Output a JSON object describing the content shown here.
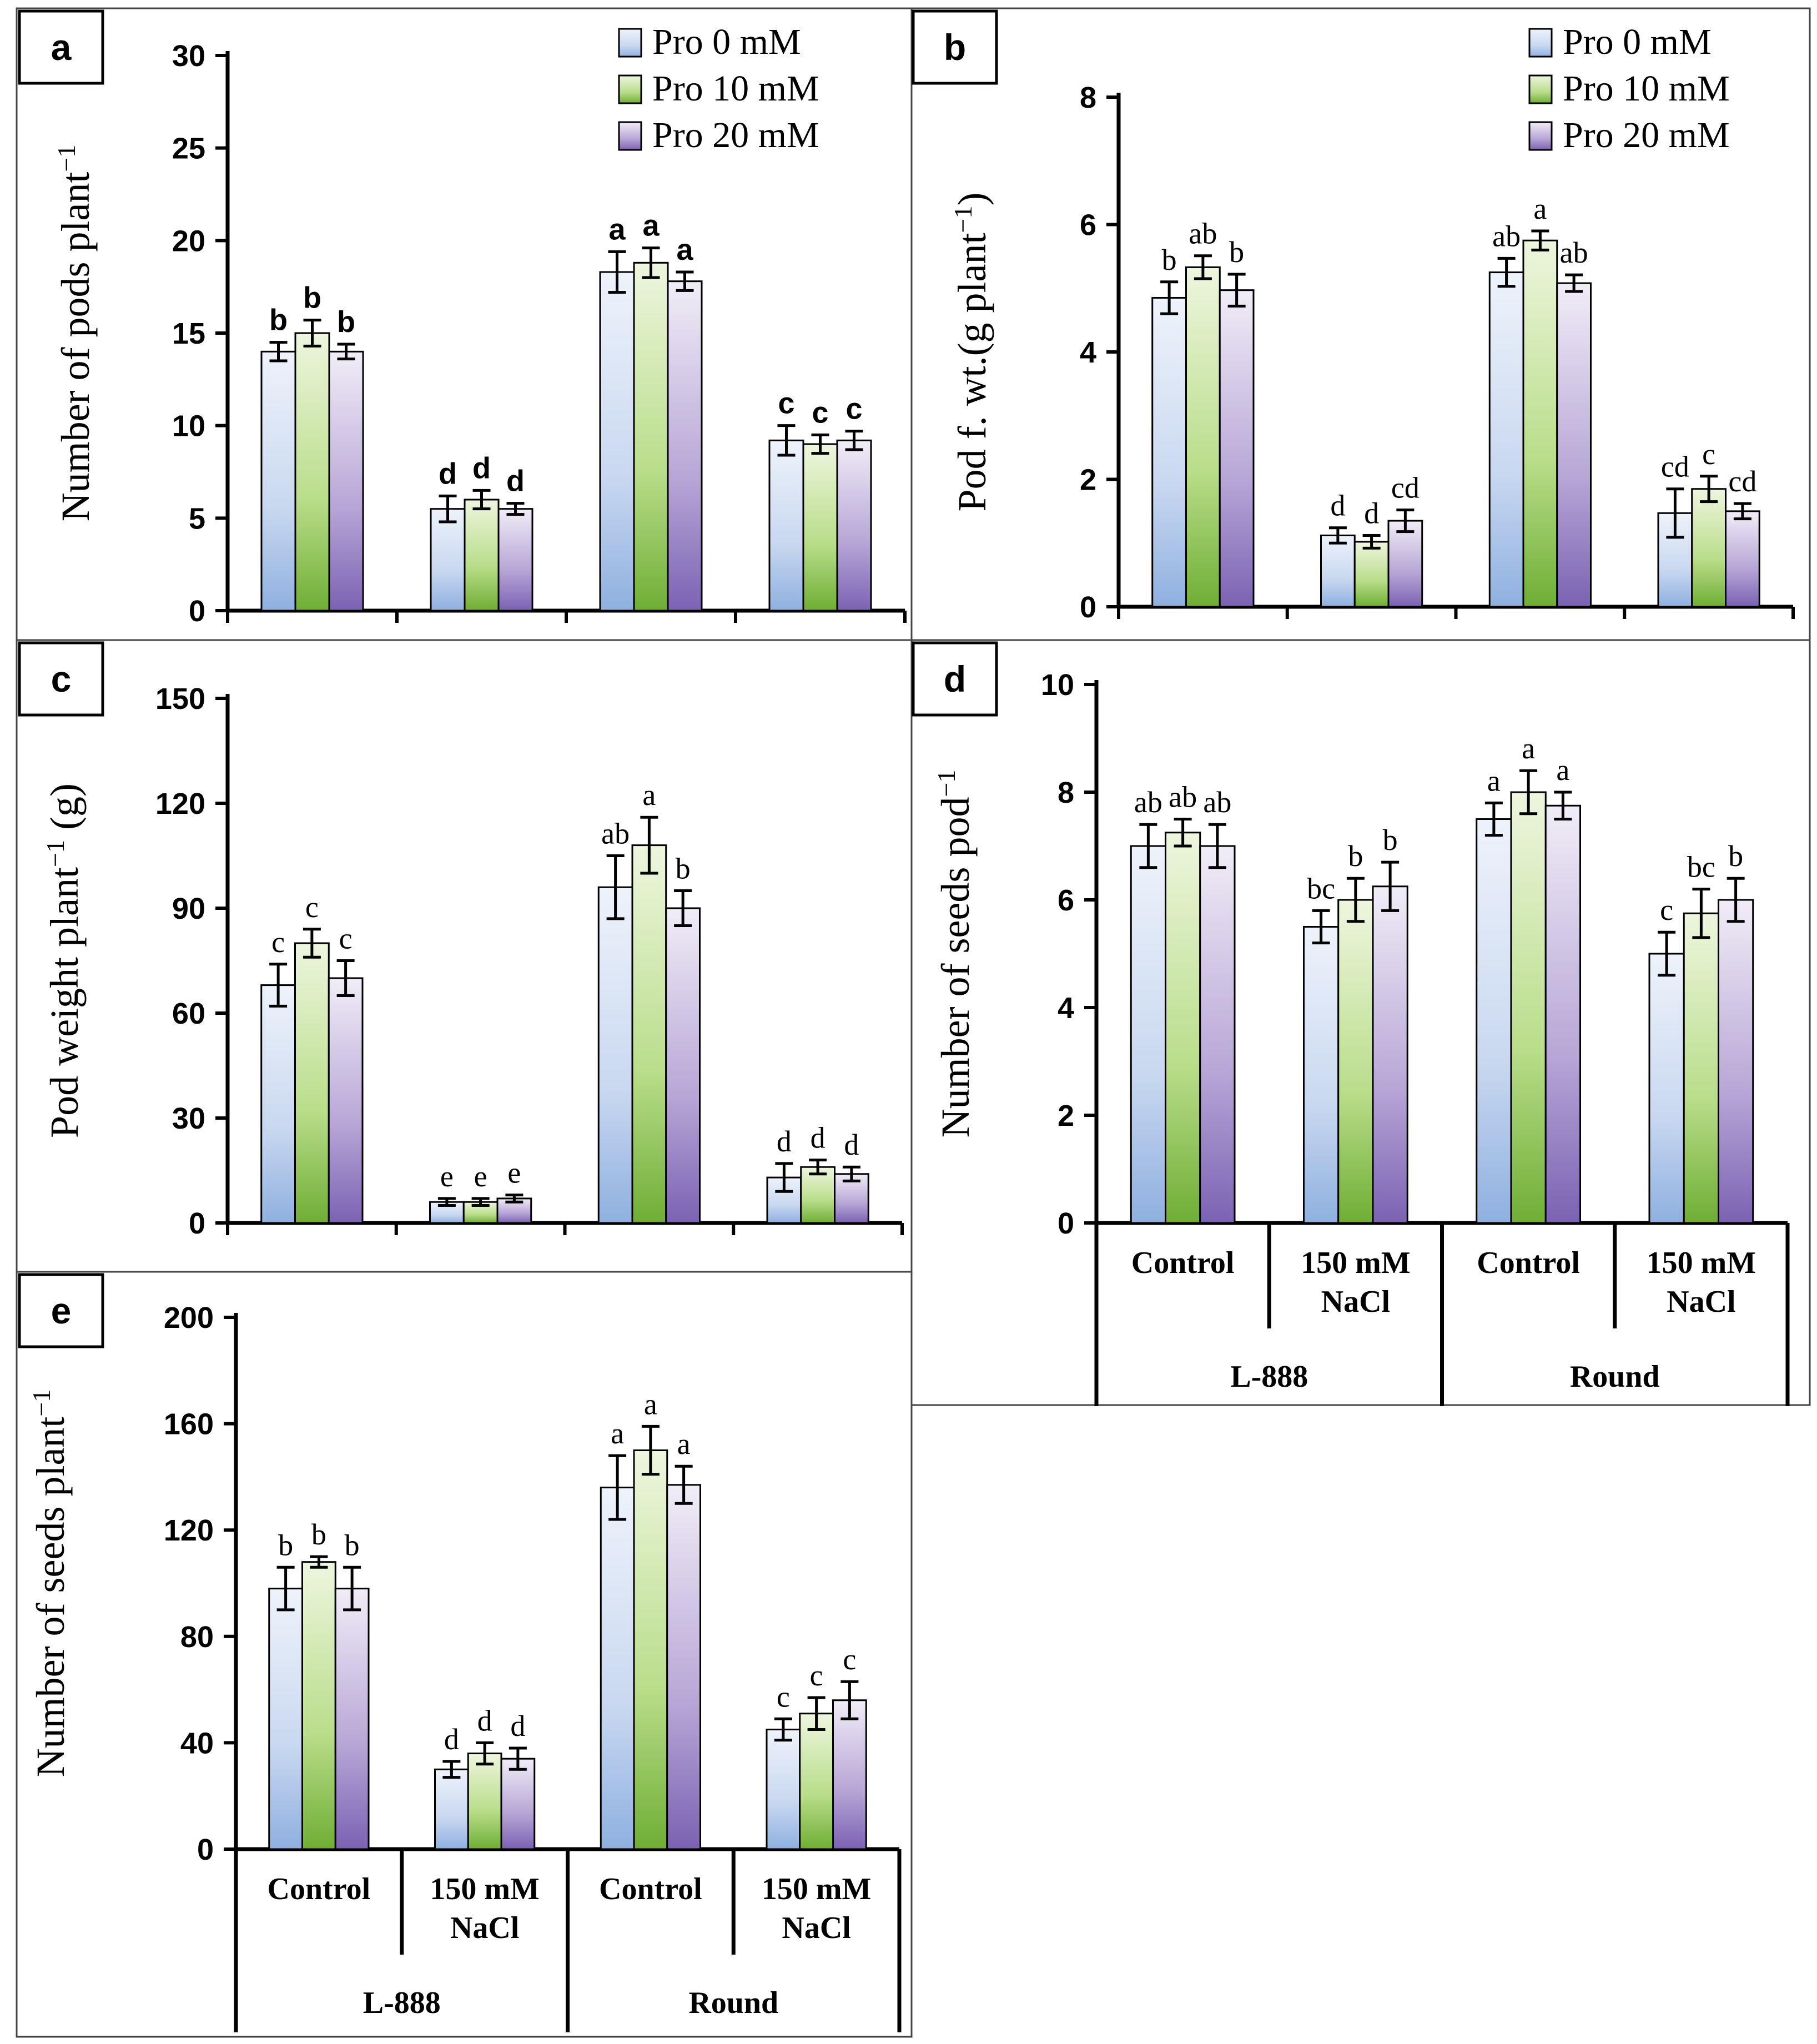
{
  "figure": {
    "legend": [
      "Pro 0 mM",
      "Pro 10 mM",
      "Pro 20 mM"
    ],
    "x_levels": {
      "treatments": [
        "Control",
        "150 mM NaCl",
        "Control",
        "150 mM NaCl"
      ],
      "cultivars": [
        "L-888",
        "Round"
      ]
    }
  },
  "chart_data": [
    {
      "panel": "a",
      "type": "bar",
      "ylabel": "Number of pods plant",
      "ylabel_sup": "−1",
      "ylim": [
        0,
        30
      ],
      "yticks": [
        0,
        5,
        10,
        15,
        20,
        25,
        30
      ],
      "categories": [
        "L-888 Control",
        "L-888 150 mM NaCl",
        "Round Control",
        "Round 150 mM NaCl"
      ],
      "series": [
        {
          "name": "Pro 0 mM",
          "values": [
            14.0,
            5.5,
            18.3,
            9.2
          ],
          "errors": [
            0.5,
            0.7,
            1.1,
            0.8
          ],
          "letters": [
            "b",
            "d",
            "a",
            "c"
          ]
        },
        {
          "name": "Pro 10 mM",
          "values": [
            15.0,
            6.0,
            18.8,
            9.0
          ],
          "errors": [
            0.7,
            0.5,
            0.8,
            0.5
          ],
          "letters": [
            "b",
            "d",
            "a",
            "c"
          ]
        },
        {
          "name": "Pro 20 mM",
          "values": [
            14.0,
            5.5,
            17.8,
            9.2
          ],
          "errors": [
            0.4,
            0.3,
            0.5,
            0.5
          ],
          "letters": [
            "b",
            "d",
            "a",
            "c"
          ]
        }
      ]
    },
    {
      "panel": "b",
      "type": "bar",
      "ylabel": "Pod f. wt.(g plant",
      "ylabel_sup": "−1",
      "ylabel_tail": ")",
      "ylim": [
        0,
        8
      ],
      "yticks": [
        0,
        2,
        4,
        6,
        8
      ],
      "categories": [
        "L-888 Control",
        "L-888 150 mM NaCl",
        "Round Control",
        "Round 150 mM NaCl"
      ],
      "series": [
        {
          "name": "Pro 0 mM",
          "values": [
            4.85,
            1.12,
            5.25,
            1.47
          ],
          "errors": [
            0.25,
            0.12,
            0.22,
            0.38
          ],
          "letters": [
            "b",
            "d",
            "ab",
            "cd"
          ]
        },
        {
          "name": "Pro 10 mM",
          "values": [
            5.33,
            1.02,
            5.75,
            1.85
          ],
          "errors": [
            0.18,
            0.1,
            0.15,
            0.2
          ],
          "letters": [
            "ab",
            "d",
            "a",
            "c"
          ]
        },
        {
          "name": "Pro 20 mM",
          "values": [
            4.97,
            1.35,
            5.08,
            1.5
          ],
          "errors": [
            0.25,
            0.17,
            0.13,
            0.12
          ],
          "letters": [
            "b",
            "cd",
            "ab",
            "cd"
          ]
        }
      ]
    },
    {
      "panel": "c",
      "type": "bar",
      "ylabel": "Pod weight plant",
      "ylabel_sup": "−1",
      "ylabel_tail": " (g)",
      "ylim": [
        0,
        150
      ],
      "yticks": [
        0,
        30,
        60,
        90,
        120,
        150
      ],
      "categories": [
        "L-888 Control",
        "L-888 150 mM NaCl",
        "Round Control",
        "Round 150 mM NaCl"
      ],
      "series": [
        {
          "name": "Pro 0 mM",
          "values": [
            68,
            6,
            96,
            13
          ],
          "errors": [
            6,
            1,
            9,
            4
          ],
          "letters": [
            "c",
            "e",
            "ab",
            "d"
          ]
        },
        {
          "name": "Pro 10 mM",
          "values": [
            80,
            6,
            108,
            16
          ],
          "errors": [
            4,
            1,
            8,
            2
          ],
          "letters": [
            "c",
            "e",
            "a",
            "d"
          ]
        },
        {
          "name": "Pro 20 mM",
          "values": [
            70,
            7,
            90,
            14
          ],
          "errors": [
            5,
            1,
            5,
            2
          ],
          "letters": [
            "c",
            "e",
            "b",
            "d"
          ]
        }
      ]
    },
    {
      "panel": "d",
      "type": "bar",
      "ylabel": "Number of seeds pod",
      "ylabel_sup": "−1",
      "ylim": [
        0,
        10
      ],
      "yticks": [
        0,
        2,
        4,
        6,
        8,
        10
      ],
      "categories": [
        "L-888 Control",
        "L-888 150 mM NaCl",
        "Round Control",
        "Round 150 mM NaCl"
      ],
      "series": [
        {
          "name": "Pro 0 mM",
          "values": [
            7.0,
            5.5,
            7.5,
            5.0
          ],
          "errors": [
            0.4,
            0.3,
            0.3,
            0.4
          ],
          "letters": [
            "ab",
            "bc",
            "a",
            "c"
          ]
        },
        {
          "name": "Pro 10 mM",
          "values": [
            7.25,
            6.0,
            8.0,
            5.75
          ],
          "errors": [
            0.25,
            0.4,
            0.4,
            0.45
          ],
          "letters": [
            "ab",
            "b",
            "a",
            "bc"
          ]
        },
        {
          "name": "Pro 20 mM",
          "values": [
            7.0,
            6.25,
            7.75,
            6.0
          ],
          "errors": [
            0.4,
            0.45,
            0.25,
            0.4
          ],
          "letters": [
            "ab",
            "b",
            "a",
            "b"
          ]
        }
      ]
    },
    {
      "panel": "e",
      "type": "bar",
      "ylabel": "Number of seeds plant",
      "ylabel_sup": "−1",
      "ylim": [
        0,
        200
      ],
      "yticks": [
        0,
        40,
        80,
        120,
        160,
        200
      ],
      "categories": [
        "L-888 Control",
        "L-888 150 mM NaCl",
        "Round Control",
        "Round 150 mM NaCl"
      ],
      "series": [
        {
          "name": "Pro 0 mM",
          "values": [
            98,
            30,
            136,
            45
          ],
          "errors": [
            8,
            3,
            12,
            4
          ],
          "letters": [
            "b",
            "d",
            "a",
            "c"
          ]
        },
        {
          "name": "Pro 10 mM",
          "values": [
            108,
            36,
            150,
            51
          ],
          "errors": [
            2,
            4,
            9,
            6
          ],
          "letters": [
            "b",
            "d",
            "a",
            "c"
          ]
        },
        {
          "name": "Pro 20 mM",
          "values": [
            98,
            34,
            137,
            56
          ],
          "errors": [
            8,
            4,
            7,
            7
          ],
          "letters": [
            "b",
            "d",
            "a",
            "c"
          ]
        }
      ]
    }
  ]
}
